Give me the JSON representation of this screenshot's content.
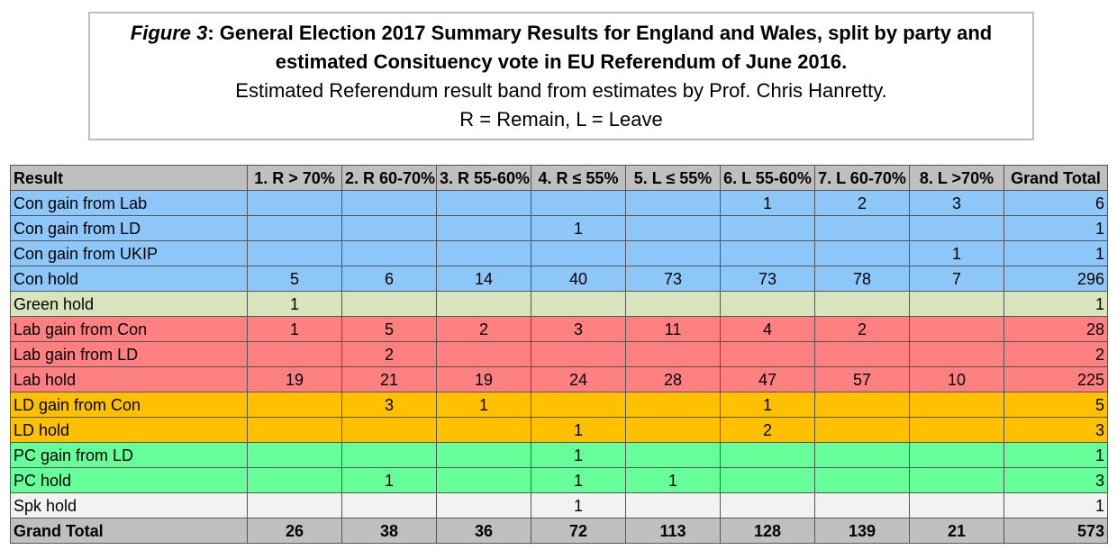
{
  "caption": {
    "figure_label": "Figure 3",
    "title_rest": ": General Election 2017 Summary Results for England and Wales, split by party and",
    "title_line2": "estimated Consituency vote in EU Referendum of June 2016.",
    "subtitle": "Estimated Referendum result band from estimates by Prof. Chris Hanretty.",
    "legend": "R = Remain, L = Leave"
  },
  "table": {
    "headers": [
      "Result",
      "1. R > 70%",
      "2. R 60-70%",
      "3. R 55-60%",
      "4. R ≤ 55%",
      "5. L ≤ 55%",
      "6. L 55-60%",
      "7. L 60-70%",
      "8. L >70%",
      "Grand Total"
    ],
    "rows": [
      {
        "label": "Con gain from Lab",
        "color": "#8dc7fa",
        "cells": [
          "",
          "",
          "",
          "",
          "",
          "1",
          "2",
          "3",
          "6"
        ]
      },
      {
        "label": "Con gain from LD",
        "color": "#8dc7fa",
        "cells": [
          "",
          "",
          "",
          "1",
          "",
          "",
          "",
          "",
          "1"
        ]
      },
      {
        "label": "Con gain from UKIP",
        "color": "#8dc7fa",
        "cells": [
          "",
          "",
          "",
          "",
          "",
          "",
          "",
          "1",
          "1"
        ]
      },
      {
        "label": "Con hold",
        "color": "#8dc7fa",
        "cells": [
          "5",
          "6",
          "14",
          "40",
          "73",
          "73",
          "78",
          "7",
          "296"
        ]
      },
      {
        "label": "Green hold",
        "color": "#d8e4bc",
        "cells": [
          "1",
          "",
          "",
          "",
          "",
          "",
          "",
          "",
          "1"
        ]
      },
      {
        "label": "Lab gain from Con",
        "color": "#ff8080",
        "cells": [
          "1",
          "5",
          "2",
          "3",
          "11",
          "4",
          "2",
          "",
          "28"
        ]
      },
      {
        "label": "Lab gain from LD",
        "color": "#ff8080",
        "cells": [
          "",
          "2",
          "",
          "",
          "",
          "",
          "",
          "",
          "2"
        ]
      },
      {
        "label": "Lab hold",
        "color": "#ff8080",
        "cells": [
          "19",
          "21",
          "19",
          "24",
          "28",
          "47",
          "57",
          "10",
          "225"
        ]
      },
      {
        "label": "LD gain from Con",
        "color": "#ffc000",
        "cells": [
          "",
          "3",
          "1",
          "",
          "",
          "1",
          "",
          "",
          "5"
        ]
      },
      {
        "label": "LD hold",
        "color": "#ffc000",
        "cells": [
          "",
          "",
          "",
          "1",
          "",
          "2",
          "",
          "",
          "3"
        ]
      },
      {
        "label": "PC gain from LD",
        "color": "#66ff99",
        "cells": [
          "",
          "",
          "",
          "1",
          "",
          "",
          "",
          "",
          "1"
        ]
      },
      {
        "label": "PC hold",
        "color": "#66ff99",
        "cells": [
          "",
          "1",
          "",
          "1",
          "1",
          "",
          "",
          "",
          "3"
        ]
      },
      {
        "label": "Spk hold",
        "color": "#f2f2f2",
        "cells": [
          "",
          "",
          "",
          "1",
          "",
          "",
          "",
          "",
          "1"
        ]
      }
    ],
    "footer": {
      "label": "Grand Total",
      "cells": [
        "26",
        "38",
        "36",
        "72",
        "113",
        "128",
        "139",
        "21",
        "573"
      ]
    }
  }
}
